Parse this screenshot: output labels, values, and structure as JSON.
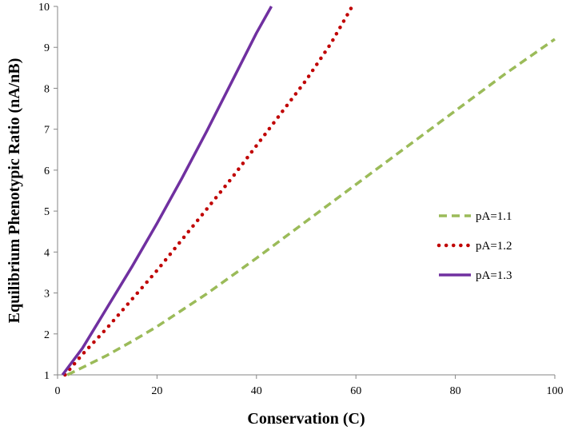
{
  "chart_data": {
    "type": "line",
    "title": "",
    "xlabel": "Conservation (C)",
    "ylabel": "Equilibrium Phenotypic Ratio (nA/nB)",
    "xlim": [
      0,
      100
    ],
    "ylim": [
      1,
      10
    ],
    "x_ticks": [
      0,
      20,
      40,
      60,
      80,
      100
    ],
    "y_ticks": [
      1,
      2,
      3,
      4,
      5,
      6,
      7,
      8,
      9,
      10
    ],
    "grid": false,
    "legend_position": "right",
    "series": [
      {
        "name": "pA=1.1",
        "color": "#9bbb59",
        "style": "dashed",
        "x": [
          2,
          5,
          10,
          15,
          20,
          30,
          40,
          50,
          60,
          70,
          80,
          90,
          100
        ],
        "y": [
          1.0,
          1.18,
          1.48,
          1.82,
          2.18,
          2.98,
          3.85,
          4.75,
          5.65,
          6.55,
          7.45,
          8.35,
          9.2
        ]
      },
      {
        "name": "pA=1.2",
        "color": "#c00000",
        "style": "dotted",
        "x": [
          1.5,
          5,
          10,
          15,
          20,
          25,
          30,
          35,
          40,
          45,
          50,
          55,
          59
        ],
        "y": [
          1.0,
          1.5,
          2.15,
          2.85,
          3.55,
          4.3,
          5.05,
          5.8,
          6.6,
          7.4,
          8.2,
          9.1,
          9.95
        ]
      },
      {
        "name": "pA=1.3",
        "color": "#7030a0",
        "style": "solid",
        "x": [
          1,
          5,
          10,
          15,
          20,
          25,
          30,
          35,
          40,
          43
        ],
        "y": [
          1.0,
          1.65,
          2.65,
          3.65,
          4.7,
          5.8,
          6.95,
          8.15,
          9.35,
          10.0
        ]
      }
    ]
  }
}
